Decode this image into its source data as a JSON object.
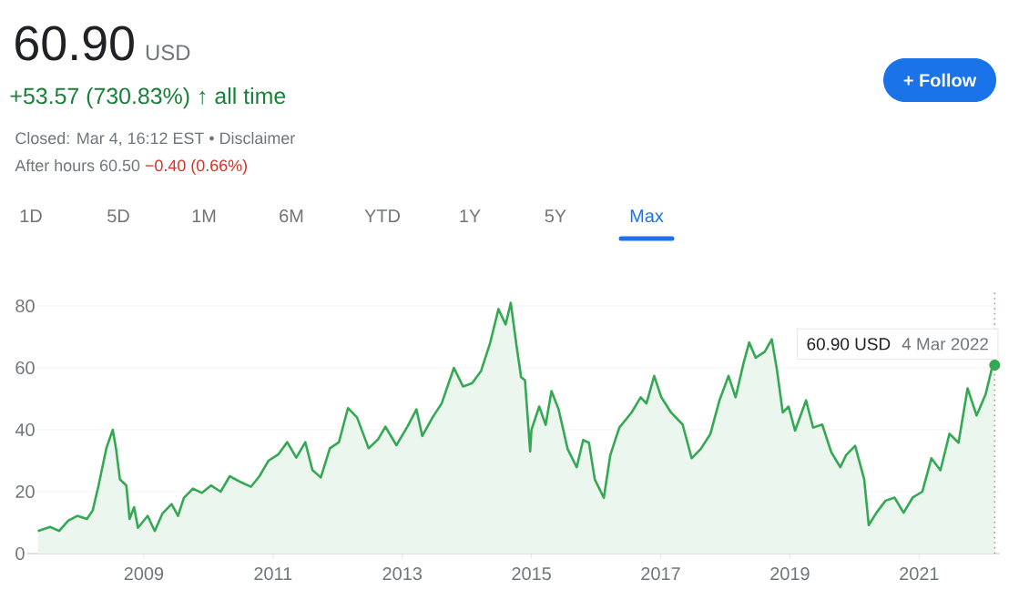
{
  "chart_data": {
    "type": "area",
    "title": "60.90",
    "subtitle": "USD",
    "annotations": [
      "+53.57 (730.83%) ↑ all time",
      "Closed: Mar 4, 16:12 EST • Disclaimer",
      "After hours 60.50",
      "−0.40 (0.66%)",
      "1D",
      "5D",
      "1M",
      "6M",
      "YTD",
      "1Y",
      "5Y",
      "Max",
      "+ Follow",
      "60.90 USD",
      {
        "text": "4 Mar 2022",
        "x": 2022.17,
        "y": 60.9
      }
    ],
    "x": [
      2007.36,
      2007.55,
      2007.69,
      2007.83,
      2007.97,
      2008.12,
      2008.21,
      2008.3,
      2008.42,
      2008.52,
      2008.57,
      2008.63,
      2008.73,
      2008.78,
      2008.85,
      2008.91,
      2009.06,
      2009.17,
      2009.29,
      2009.43,
      2009.53,
      2009.62,
      2009.76,
      2009.9,
      2010.04,
      2010.19,
      2010.33,
      2010.51,
      2010.66,
      2010.79,
      2010.93,
      2011.08,
      2011.22,
      2011.36,
      2011.5,
      2011.61,
      2011.74,
      2011.88,
      2012.02,
      2012.16,
      2012.3,
      2012.48,
      2012.63,
      2012.74,
      2012.91,
      2013.08,
      2013.22,
      2013.31,
      2013.47,
      2013.61,
      2013.8,
      2013.94,
      2014.08,
      2014.22,
      2014.36,
      2014.49,
      2014.6,
      2014.68,
      2014.77,
      2014.84,
      2014.9,
      2014.98,
      2015.0,
      2015.12,
      2015.22,
      2015.31,
      2015.42,
      2015.56,
      2015.7,
      2015.8,
      2015.89,
      2015.98,
      2016.12,
      2016.22,
      2016.36,
      2016.55,
      2016.69,
      2016.78,
      2016.9,
      2017.01,
      2017.16,
      2017.34,
      2017.48,
      2017.62,
      2017.77,
      2017.91,
      2018.05,
      2018.16,
      2018.28,
      2018.37,
      2018.47,
      2018.61,
      2018.72,
      2018.8,
      2018.89,
      2018.98,
      2019.08,
      2019.25,
      2019.36,
      2019.5,
      2019.64,
      2019.78,
      2019.87,
      2020.01,
      2020.15,
      2020.22,
      2020.34,
      2020.48,
      2020.62,
      2020.76,
      2020.9,
      2021.05,
      2021.19,
      2021.33,
      2021.47,
      2021.61,
      2021.75,
      2021.89,
      2022.03,
      2022.12,
      2022.17
    ],
    "series": [
      {
        "color": "#34a853",
        "values": [
          7.3,
          8.6,
          7.3,
          10.6,
          12.2,
          11.2,
          14,
          22,
          34,
          40,
          34,
          24,
          22,
          11.2,
          15,
          8.3,
          12.2,
          7.3,
          13,
          16,
          12.2,
          18,
          21,
          19.6,
          22,
          20,
          25,
          23,
          21.6,
          25,
          30,
          32,
          36,
          31,
          36,
          27,
          24.6,
          34,
          36,
          47,
          44,
          34,
          37,
          41,
          35,
          41,
          46.6,
          38,
          44,
          48.5,
          60,
          54,
          55,
          59,
          68,
          79,
          74,
          81,
          67,
          57,
          56,
          33,
          40,
          47.5,
          41.6,
          52.5,
          46.6,
          33.8,
          27.9,
          36.7,
          35.8,
          24,
          18,
          31.8,
          40.7,
          45.6,
          50.5,
          48.5,
          57.4,
          50.5,
          45.6,
          41.7,
          30.8,
          33.8,
          38.7,
          49.5,
          57.4,
          50.5,
          61.3,
          68.2,
          63.3,
          65.2,
          69.2,
          59.3,
          45.6,
          47.5,
          39.7,
          49.5,
          40.7,
          41.7,
          32.8,
          27.9,
          31.8,
          34.8,
          24,
          9.2,
          13.2,
          17.1,
          18.1,
          13.2,
          18.1,
          20,
          30.8,
          26.9,
          38.7,
          35.8,
          53.4,
          44.6,
          51.5,
          59.3,
          60.9
        ]
      }
    ],
    "xlim": [
      2007,
      2022.25
    ],
    "xticks": [
      2009,
      2011,
      2013,
      2015,
      2017,
      2019,
      2021
    ],
    "ylim": [
      0,
      85
    ],
    "yticks": [
      0,
      20,
      40,
      60,
      80
    ],
    "grid": "y",
    "ref_lines": [
      {
        "axis": "x",
        "value": 2022.17,
        "color": "#9e9e9e",
        "line_style": "dotted"
      }
    ]
  }
}
